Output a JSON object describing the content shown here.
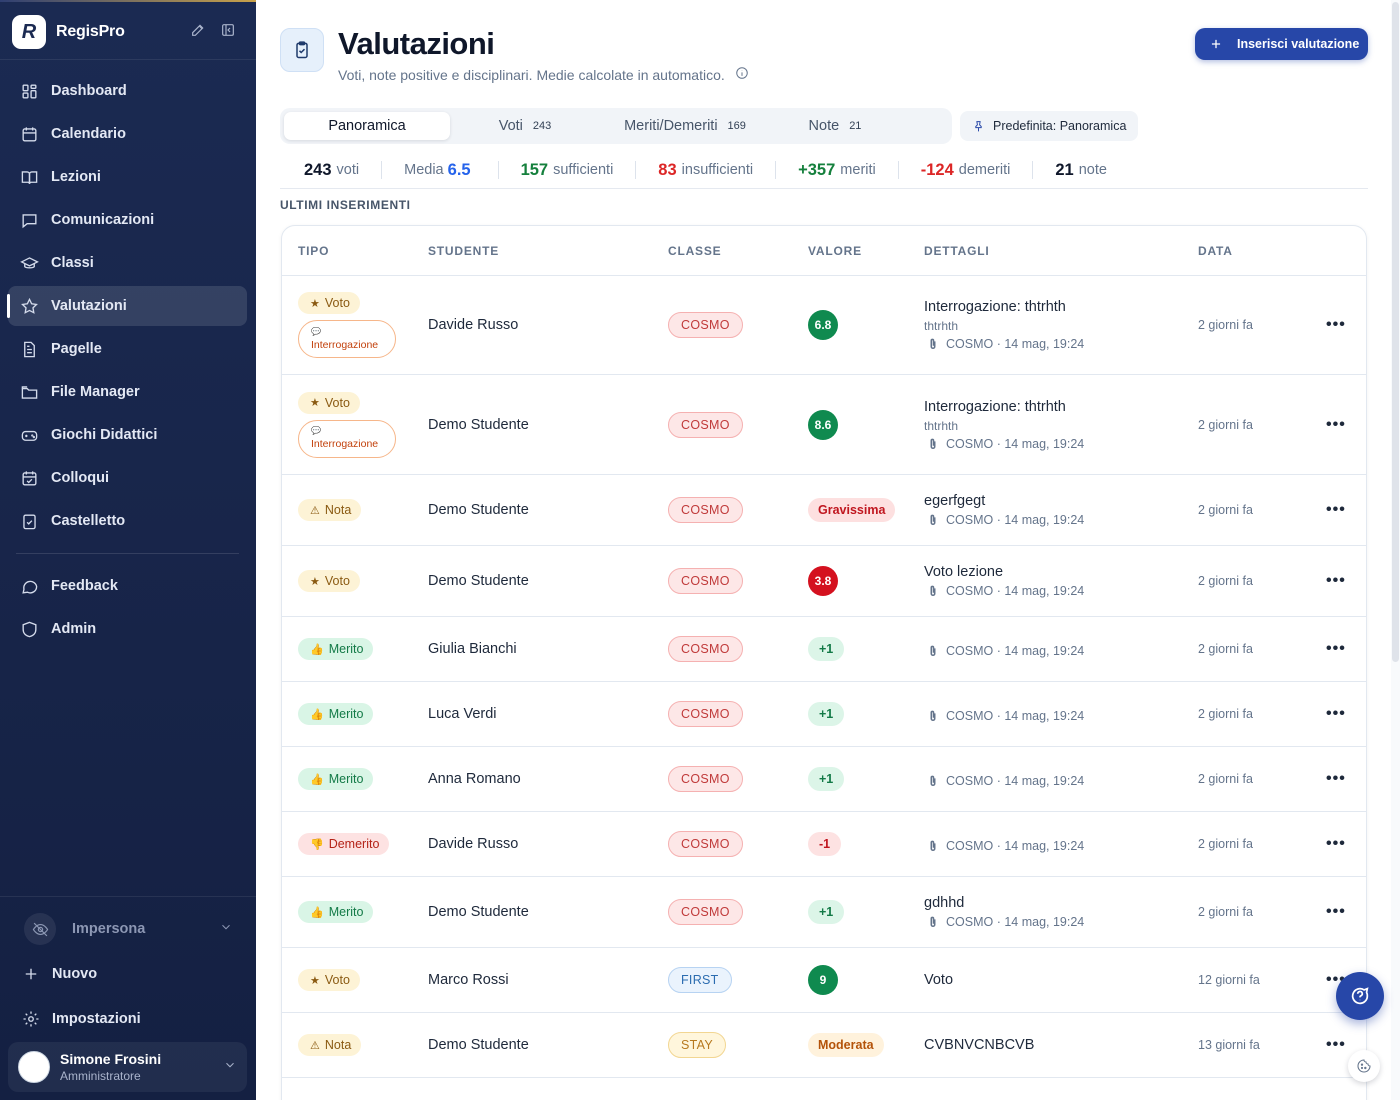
{
  "app": {
    "name": "RegisPro",
    "logo_letter": "R"
  },
  "sidebar": {
    "items": [
      {
        "key": "dashboard",
        "label": "Dashboard",
        "icon": "grid-icon",
        "active": false
      },
      {
        "key": "calendario",
        "label": "Calendario",
        "icon": "calendar-icon",
        "active": false
      },
      {
        "key": "lezioni",
        "label": "Lezioni",
        "icon": "book-open-icon",
        "active": false
      },
      {
        "key": "comunicazioni",
        "label": "Comunicazioni",
        "icon": "message-square-icon",
        "active": false
      },
      {
        "key": "classi",
        "label": "Classi",
        "icon": "graduation-cap-icon",
        "active": false
      },
      {
        "key": "valutazioni",
        "label": "Valutazioni",
        "icon": "star-icon",
        "active": true
      },
      {
        "key": "pagelle",
        "label": "Pagelle",
        "icon": "document-icon",
        "active": false
      },
      {
        "key": "file-manager",
        "label": "File Manager",
        "icon": "folder-icon",
        "active": false
      },
      {
        "key": "giochi",
        "label": "Giochi Didattici",
        "icon": "gamepad-icon",
        "active": false
      },
      {
        "key": "colloqui",
        "label": "Colloqui",
        "icon": "calendar-check-icon",
        "active": false
      },
      {
        "key": "castelletto",
        "label": "Castelletto",
        "icon": "clipboard-check-icon",
        "active": false
      }
    ],
    "secondary": [
      {
        "key": "feedback",
        "label": "Feedback",
        "icon": "message-circle-icon"
      },
      {
        "key": "admin",
        "label": "Admin",
        "icon": "shield-icon"
      }
    ],
    "impersona": "Impersona",
    "nuovo": "Nuovo",
    "impostazioni": "Impostazioni",
    "user": {
      "name": "Simone Frosini",
      "role": "Amministratore"
    }
  },
  "header": {
    "title": "Valutazioni",
    "subtitle": "Voti, note positive e disciplinari. Medie calcolate in automatico.",
    "primary_button": "Inserisci valutazione"
  },
  "tabs": [
    {
      "label": "Panoramica",
      "count": "",
      "active": true
    },
    {
      "label": "Voti",
      "count": "243",
      "active": false
    },
    {
      "label": "Meriti/Demeriti",
      "count": "169",
      "active": false
    },
    {
      "label": "Note",
      "count": "21",
      "active": false
    }
  ],
  "pin_chip": "Predefinita: Panoramica",
  "stats": [
    {
      "value": "243",
      "label": "voti",
      "color": "#0f172a",
      "value_first": true
    },
    {
      "value": "6.5",
      "label": "Media",
      "color": "#2563eb",
      "value_first": false
    },
    {
      "value": "157",
      "label": "sufficienti",
      "color": "#15803d",
      "value_first": true
    },
    {
      "value": "83",
      "label": "insufficienti",
      "color": "#dc2626",
      "value_first": true
    },
    {
      "value": "+357",
      "label": "meriti",
      "color": "#15803d",
      "value_first": true
    },
    {
      "value": "-124",
      "label": "demeriti",
      "color": "#dc2626",
      "value_first": true
    },
    {
      "value": "21",
      "label": "note",
      "color": "#0f172a",
      "value_first": true
    }
  ],
  "section_label": "ULTIMI INSERIMENTI",
  "table": {
    "columns": [
      "TIPO",
      "STUDENTE",
      "CLASSE",
      "VALORE",
      "DETTAGLI",
      "DATA"
    ],
    "rows": [
      {
        "tipo": "Voto",
        "tipo_glyph": "★",
        "tipo_style": "voto",
        "sub_badge": "Interrogazione",
        "sub_glyph": "💬",
        "studente": "Davide Russo",
        "classe": "COSMO",
        "classe_style": "cosmo",
        "valore": "6.8",
        "valore_style": "grade-green",
        "det_main": "Interrogazione: thtrhth",
        "det_sub": "thtrhth",
        "det_meta": "COSMO · 14 mag, 19:24",
        "data": "2 giorni fa",
        "height": 99
      },
      {
        "tipo": "Voto",
        "tipo_glyph": "★",
        "tipo_style": "voto",
        "sub_badge": "Interrogazione",
        "sub_glyph": "💬",
        "studente": "Demo Studente",
        "classe": "COSMO",
        "classe_style": "cosmo",
        "valore": "8.6",
        "valore_style": "grade-green",
        "det_main": "Interrogazione: thtrhth",
        "det_sub": "thtrhth",
        "det_meta": "COSMO · 14 mag, 19:24",
        "data": "2 giorni fa",
        "height": 100
      },
      {
        "tipo": "Nota",
        "tipo_glyph": "⚠",
        "tipo_style": "nota",
        "sub_badge": "",
        "sub_glyph": "",
        "studente": "Demo Studente",
        "classe": "COSMO",
        "classe_style": "cosmo",
        "valore": "Gravissima",
        "valore_style": "grav",
        "det_main": "egerfgegt",
        "det_sub": "",
        "det_meta": "COSMO · 14 mag, 19:24",
        "data": "2 giorni fa",
        "height": 71
      },
      {
        "tipo": "Voto",
        "tipo_glyph": "★",
        "tipo_style": "voto",
        "sub_badge": "",
        "sub_glyph": "",
        "studente": "Demo Studente",
        "classe": "COSMO",
        "classe_style": "cosmo",
        "valore": "3.8",
        "valore_style": "grade-red",
        "det_main": "Voto lezione",
        "det_sub": "",
        "det_meta": "COSMO · 14 mag, 19:24",
        "data": "2 giorni fa",
        "height": 71
      },
      {
        "tipo": "Merito",
        "tipo_glyph": "👍",
        "tipo_style": "merito",
        "sub_badge": "",
        "sub_glyph": "",
        "studente": "Giulia Bianchi",
        "classe": "COSMO",
        "classe_style": "cosmo",
        "valore": "+1",
        "valore_style": "plus",
        "det_main": "",
        "det_sub": "",
        "det_meta": "COSMO · 14 mag, 19:24",
        "data": "2 giorni fa",
        "height": 65
      },
      {
        "tipo": "Merito",
        "tipo_glyph": "👍",
        "tipo_style": "merito",
        "sub_badge": "",
        "sub_glyph": "",
        "studente": "Luca Verdi",
        "classe": "COSMO",
        "classe_style": "cosmo",
        "valore": "+1",
        "valore_style": "plus",
        "det_main": "",
        "det_sub": "",
        "det_meta": "COSMO · 14 mag, 19:24",
        "data": "2 giorni fa",
        "height": 65
      },
      {
        "tipo": "Merito",
        "tipo_glyph": "👍",
        "tipo_style": "merito",
        "sub_badge": "",
        "sub_glyph": "",
        "studente": "Anna Romano",
        "classe": "COSMO",
        "classe_style": "cosmo",
        "valore": "+1",
        "valore_style": "plus",
        "det_main": "",
        "det_sub": "",
        "det_meta": "COSMO · 14 mag, 19:24",
        "data": "2 giorni fa",
        "height": 65
      },
      {
        "tipo": "Demerito",
        "tipo_glyph": "👎",
        "tipo_style": "demerito",
        "sub_badge": "",
        "sub_glyph": "",
        "studente": "Davide Russo",
        "classe": "COSMO",
        "classe_style": "cosmo",
        "valore": "-1",
        "valore_style": "minus",
        "det_main": "",
        "det_sub": "",
        "det_meta": "COSMO · 14 mag, 19:24",
        "data": "2 giorni fa",
        "height": 65
      },
      {
        "tipo": "Merito",
        "tipo_glyph": "👍",
        "tipo_style": "merito",
        "sub_badge": "",
        "sub_glyph": "",
        "studente": "Demo Studente",
        "classe": "COSMO",
        "classe_style": "cosmo",
        "valore": "+1",
        "valore_style": "plus",
        "det_main": "gdhhd",
        "det_sub": "",
        "det_meta": "COSMO · 14 mag, 19:24",
        "data": "2 giorni fa",
        "height": 71
      },
      {
        "tipo": "Voto",
        "tipo_glyph": "★",
        "tipo_style": "voto",
        "sub_badge": "",
        "sub_glyph": "",
        "studente": "Marco Rossi",
        "classe": "FIRST",
        "classe_style": "first",
        "valore": "9",
        "valore_style": "grade-green",
        "det_main": "Voto",
        "det_sub": "",
        "det_meta": "",
        "data": "12 giorni fa",
        "height": 65
      },
      {
        "tipo": "Nota",
        "tipo_glyph": "⚠",
        "tipo_style": "nota",
        "sub_badge": "",
        "sub_glyph": "",
        "studente": "Demo Studente",
        "classe": "STAY",
        "classe_style": "stay",
        "valore": "Moderata",
        "valore_style": "mod",
        "det_main": "CVBNVCNBCVB",
        "det_sub": "",
        "det_meta": "",
        "data": "13 giorni fa",
        "height": 65
      }
    ],
    "row_menu": "•••"
  },
  "fab_icon": "help-circle-icon",
  "cookie_icon": "cookie-icon"
}
